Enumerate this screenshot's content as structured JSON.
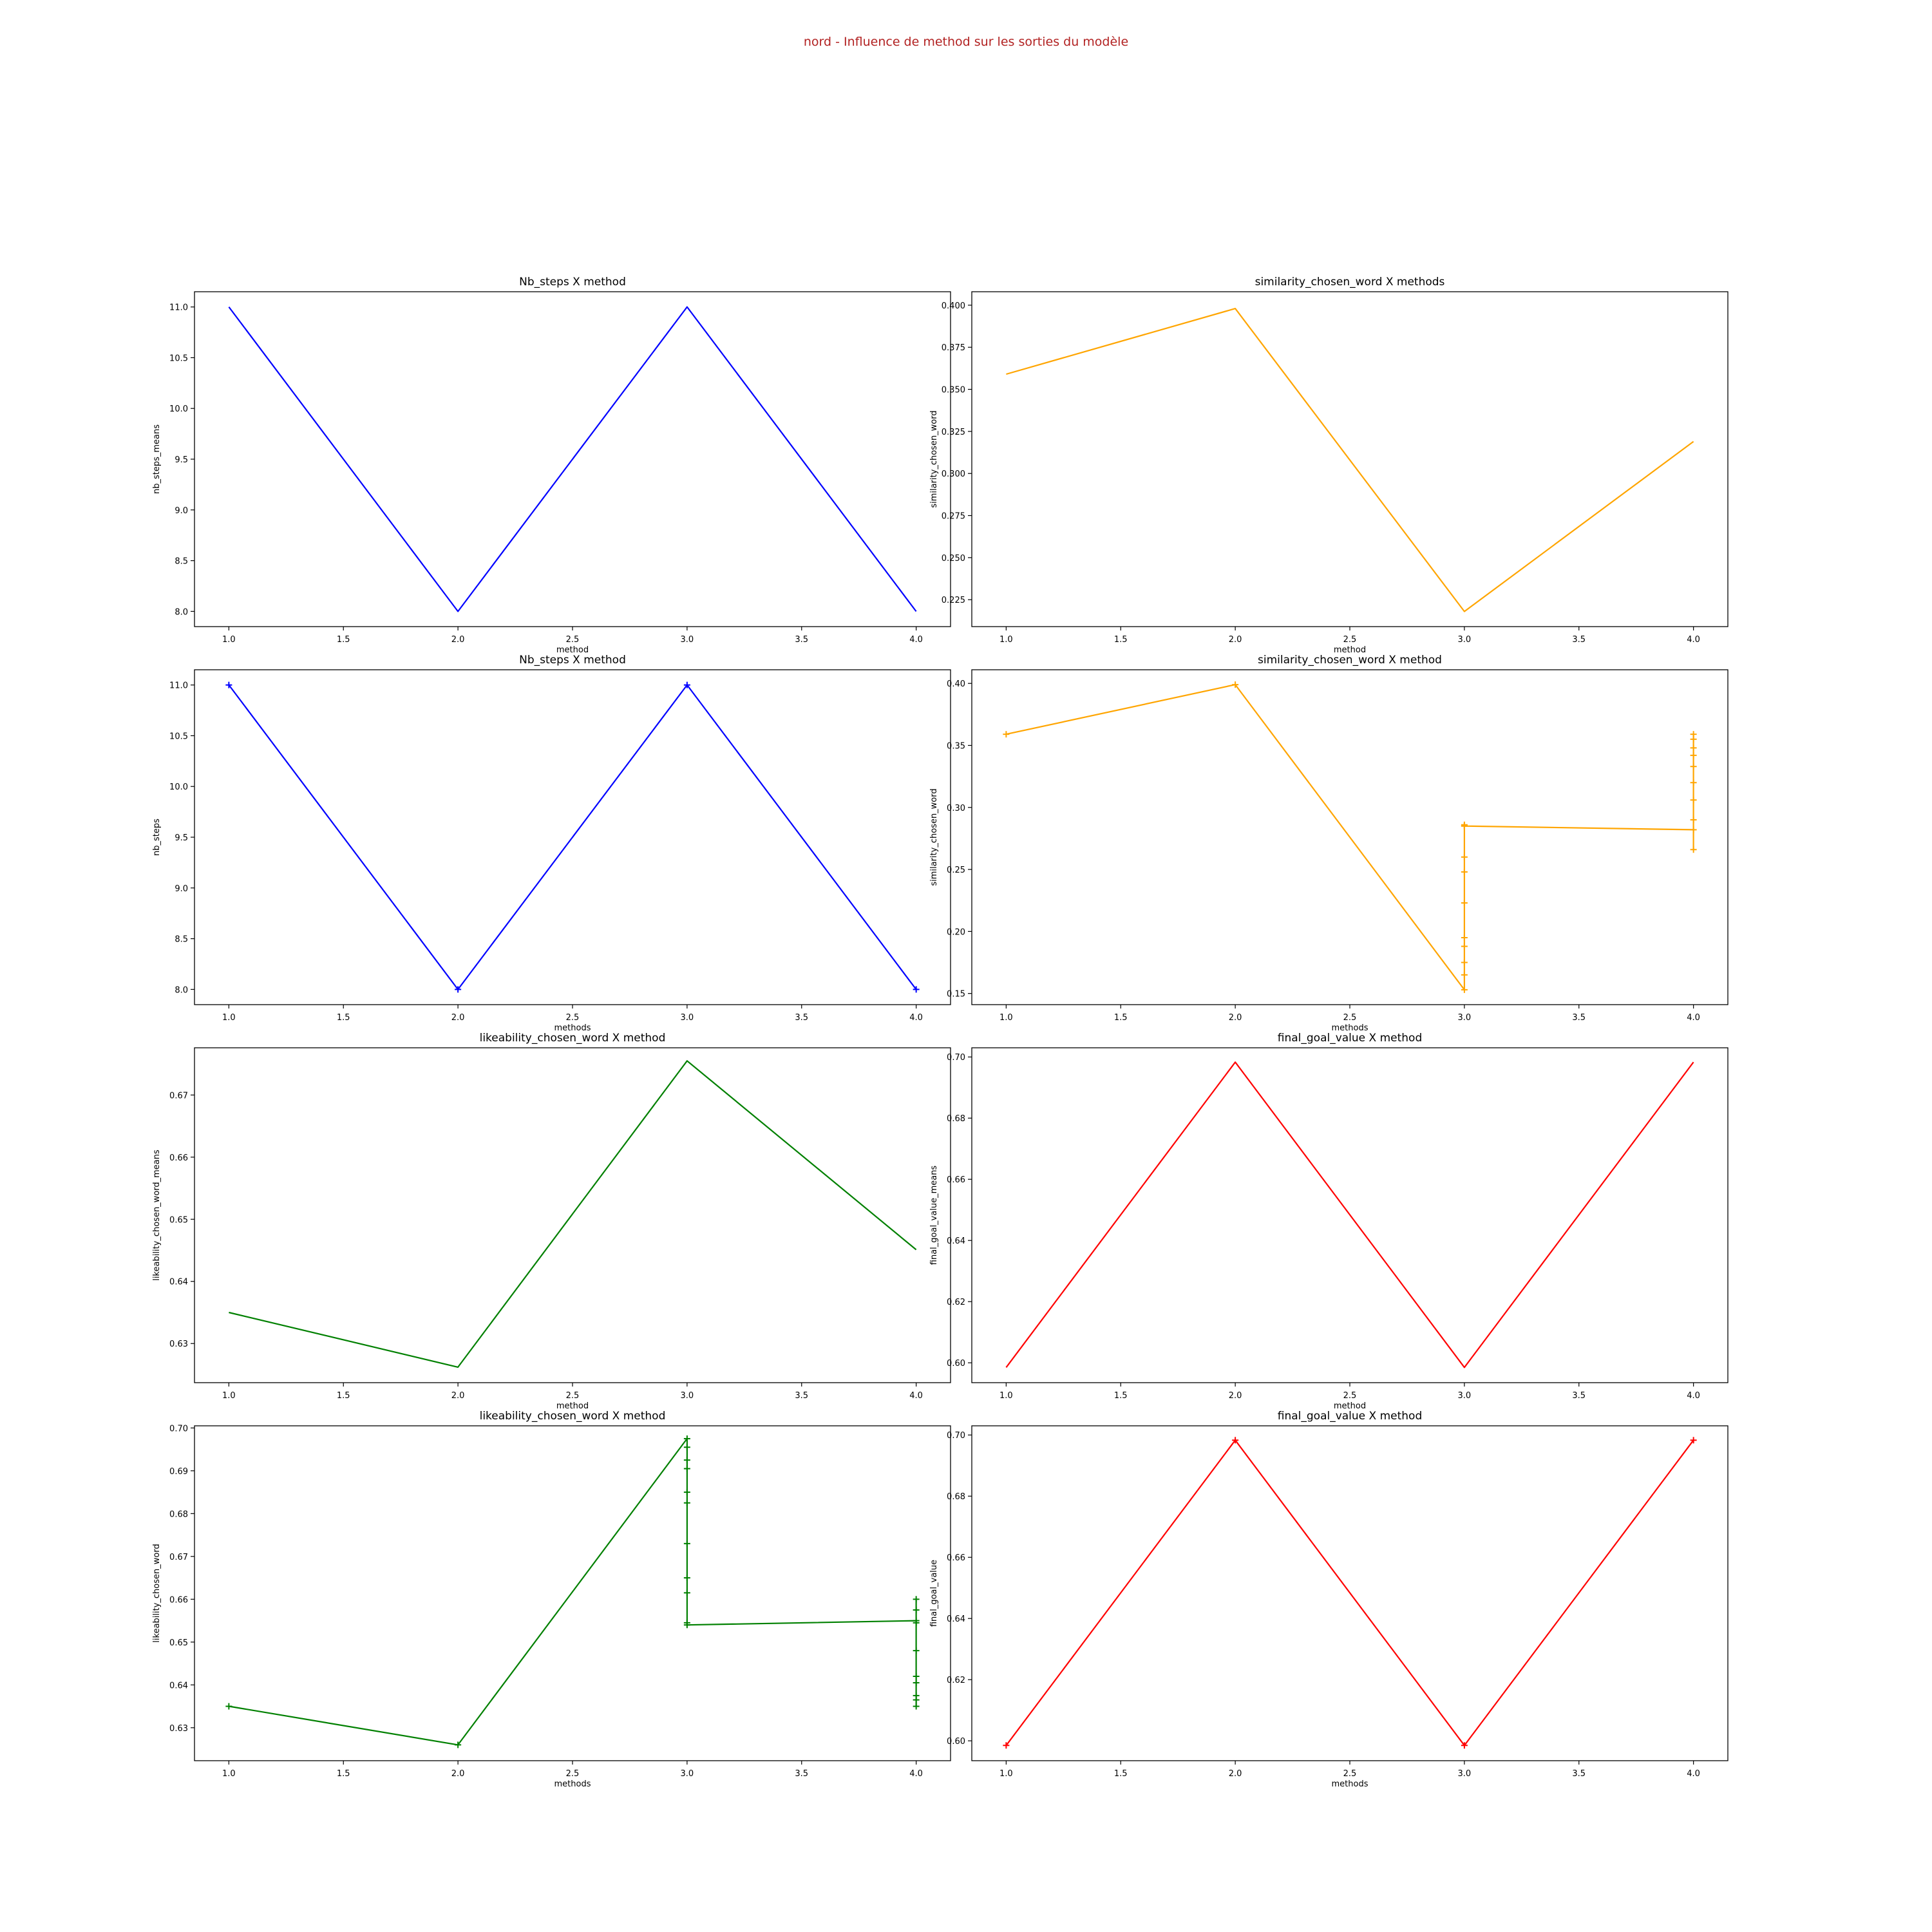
{
  "suptitle": "nord - Influence de method sur les sorties du modèle",
  "chart_data": [
    {
      "type": "line",
      "title": "Nb_steps X method",
      "xlabel": "method",
      "ylabel": "nb_steps_means",
      "color": "#0000ff",
      "markers": false,
      "xlim": [
        0.85,
        4.15
      ],
      "ylim": [
        7.85,
        11.15
      ],
      "xticks": [
        1.0,
        1.5,
        2.0,
        2.5,
        3.0,
        3.5,
        4.0
      ],
      "yticks": [
        8.0,
        8.5,
        9.0,
        9.5,
        10.0,
        10.5,
        11.0
      ],
      "x": [
        1,
        2,
        3,
        4
      ],
      "y": [
        11.0,
        8.0,
        11.0,
        8.0
      ]
    },
    {
      "type": "line",
      "title": "similarity_chosen_word X methods",
      "xlabel": "method",
      "ylabel": "similarity_chosen_word",
      "color": "#ffa500",
      "markers": false,
      "xlim": [
        0.85,
        4.15
      ],
      "ylim": [
        0.209,
        0.408
      ],
      "xticks": [
        1.0,
        1.5,
        2.0,
        2.5,
        3.0,
        3.5,
        4.0
      ],
      "yticks": [
        0.225,
        0.25,
        0.275,
        0.3,
        0.325,
        0.35,
        0.375,
        0.4
      ],
      "ytick_decimals": 3,
      "x": [
        1,
        2,
        3,
        4
      ],
      "y": [
        0.359,
        0.398,
        0.218,
        0.319
      ]
    },
    {
      "type": "line",
      "title": "Nb_steps X method",
      "xlabel": "methods",
      "ylabel": "nb_steps",
      "color": "#0000ff",
      "markers": true,
      "xlim": [
        0.85,
        4.15
      ],
      "ylim": [
        7.85,
        11.15
      ],
      "xticks": [
        1.0,
        1.5,
        2.0,
        2.5,
        3.0,
        3.5,
        4.0
      ],
      "yticks": [
        8.0,
        8.5,
        9.0,
        9.5,
        10.0,
        10.5,
        11.0
      ],
      "x": [
        1,
        2,
        3,
        4
      ],
      "y": [
        11.0,
        8.0,
        11.0,
        8.0
      ]
    },
    {
      "type": "line",
      "title": "similarity_chosen_word X method",
      "xlabel": "methods",
      "ylabel": "similarity_chosen_word",
      "color": "#ffa500",
      "markers": true,
      "xlim": [
        0.85,
        4.15
      ],
      "ylim": [
        0.141,
        0.411
      ],
      "xticks": [
        1.0,
        1.5,
        2.0,
        2.5,
        3.0,
        3.5,
        4.0
      ],
      "yticks": [
        0.15,
        0.2,
        0.25,
        0.3,
        0.35,
        0.4
      ],
      "ytick_decimals": 2,
      "x": [
        1,
        2,
        3,
        3,
        3,
        3,
        3,
        3,
        3,
        3,
        3,
        3,
        3,
        4,
        4,
        4,
        4,
        4,
        4,
        4,
        4,
        4,
        4
      ],
      "y": [
        0.359,
        0.399,
        0.153,
        0.165,
        0.175,
        0.188,
        0.195,
        0.223,
        0.248,
        0.26,
        0.285,
        0.286,
        0.285,
        0.282,
        0.266,
        0.29,
        0.306,
        0.32,
        0.333,
        0.342,
        0.348,
        0.355,
        0.359
      ]
    },
    {
      "type": "line",
      "title": "likeability_chosen_word X method",
      "xlabel": "method",
      "ylabel": "likeability_chosen_word_means",
      "color": "#008000",
      "markers": false,
      "xlim": [
        0.85,
        4.15
      ],
      "ylim": [
        0.6237,
        0.6776
      ],
      "xticks": [
        1.0,
        1.5,
        2.0,
        2.5,
        3.0,
        3.5,
        4.0
      ],
      "yticks": [
        0.63,
        0.64,
        0.65,
        0.66,
        0.67
      ],
      "ytick_decimals": 2,
      "x": [
        1,
        2,
        3,
        4
      ],
      "y": [
        0.635,
        0.6262,
        0.6755,
        0.6451
      ]
    },
    {
      "type": "line",
      "title": "final_goal_value X method",
      "xlabel": "method",
      "ylabel": "final_goal_value_means",
      "color": "#ff0000",
      "markers": false,
      "xlim": [
        0.85,
        4.15
      ],
      "ylim": [
        0.5935,
        0.703
      ],
      "xticks": [
        1.0,
        1.5,
        2.0,
        2.5,
        3.0,
        3.5,
        4.0
      ],
      "yticks": [
        0.6,
        0.62,
        0.64,
        0.66,
        0.68,
        0.7
      ],
      "ytick_decimals": 2,
      "x": [
        1,
        2,
        3,
        4
      ],
      "y": [
        0.5985,
        0.6983,
        0.5985,
        0.6983
      ]
    },
    {
      "type": "line",
      "title": "likeability_chosen_word X method",
      "xlabel": "methods",
      "ylabel": "likeability_chosen_word",
      "color": "#008000",
      "markers": true,
      "xlim": [
        0.85,
        4.15
      ],
      "ylim": [
        0.6223,
        0.7005
      ],
      "xticks": [
        1.0,
        1.5,
        2.0,
        2.5,
        3.0,
        3.5,
        4.0
      ],
      "yticks": [
        0.63,
        0.64,
        0.65,
        0.66,
        0.67,
        0.68,
        0.69,
        0.7
      ],
      "ytick_decimals": 2,
      "x": [
        1,
        2,
        3,
        3,
        3,
        3,
        3,
        3,
        3,
        3,
        3,
        3,
        3,
        4,
        4,
        4,
        4,
        4,
        4,
        4,
        4,
        4,
        4
      ],
      "y": [
        0.635,
        0.626,
        0.6975,
        0.6955,
        0.6925,
        0.6905,
        0.685,
        0.6825,
        0.673,
        0.665,
        0.6615,
        0.6545,
        0.654,
        0.655,
        0.66,
        0.6575,
        0.6545,
        0.648,
        0.642,
        0.6405,
        0.6375,
        0.6365,
        0.635
      ]
    },
    {
      "type": "line",
      "title": "final_goal_value X method",
      "xlabel": "methods",
      "ylabel": "final_goal_value",
      "color": "#ff0000",
      "markers": true,
      "xlim": [
        0.85,
        4.15
      ],
      "ylim": [
        0.5935,
        0.703
      ],
      "xticks": [
        1.0,
        1.5,
        2.0,
        2.5,
        3.0,
        3.5,
        4.0
      ],
      "yticks": [
        0.6,
        0.62,
        0.64,
        0.66,
        0.68,
        0.7
      ],
      "ytick_decimals": 2,
      "x": [
        1,
        2,
        3,
        4
      ],
      "y": [
        0.5985,
        0.6983,
        0.5985,
        0.6983
      ]
    }
  ]
}
